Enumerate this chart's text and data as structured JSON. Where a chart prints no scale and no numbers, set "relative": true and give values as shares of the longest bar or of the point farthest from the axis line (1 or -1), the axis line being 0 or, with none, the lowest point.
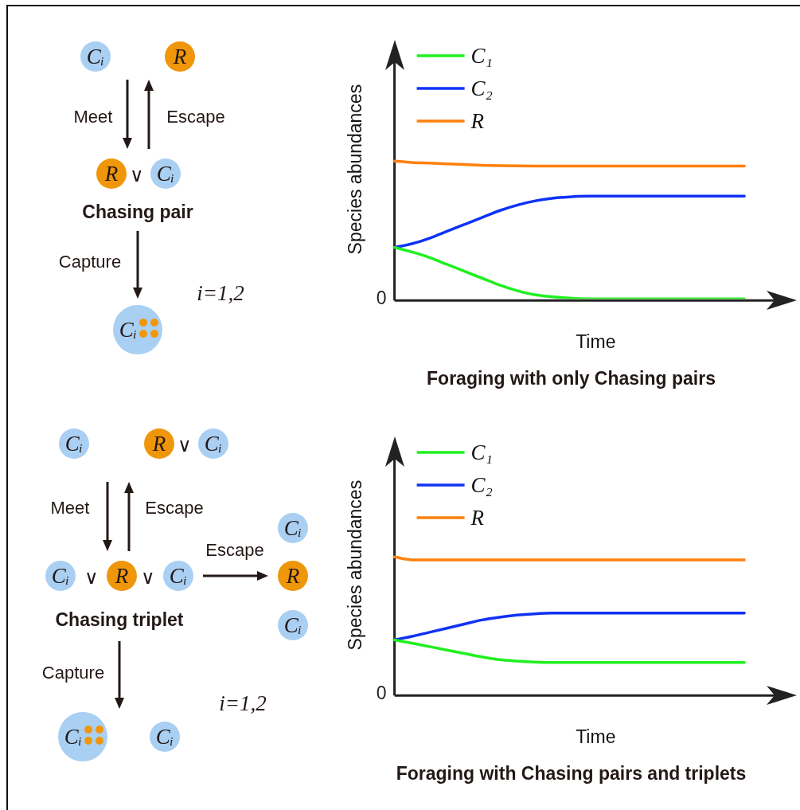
{
  "chart_data": [
    {
      "type": "other",
      "annotations": [
        "Cᵢ",
        "R",
        "Meet",
        "Escape",
        "R",
        "∨",
        "Cᵢ",
        "Chasing pair",
        "Capture",
        "Cᵢ",
        "i=1,2"
      ]
    },
    {
      "type": "line",
      "relative": true,
      "xlabel": "Time",
      "ylabel": "Species abundances",
      "title": "Foraging with only Chasing pairs",
      "legend": "top left",
      "grid": false,
      "marker": "none",
      "line_style": "solid",
      "annotations": [
        "0"
      ],
      "categories": [
        null,
        null,
        null,
        null,
        null,
        null,
        null,
        null,
        null,
        null,
        null,
        null,
        null,
        null,
        null,
        null,
        null,
        null,
        null,
        null,
        null,
        null,
        null,
        null
      ],
      "series": [
        {
          "name": "C₁",
          "color": "#1ff01f",
          "values": [
            0.373,
            0.34,
            0.3,
            0.25,
            0.2,
            0.15,
            0.1,
            0.06,
            0.03,
            0.015,
            0.005,
            0,
            0,
            0,
            0,
            0,
            0,
            0,
            0,
            0,
            0,
            null,
            null,
            null
          ]
        },
        {
          "name": "C₂",
          "color": "#0f32f5",
          "values": [
            0.373,
            0.4,
            0.44,
            0.49,
            0.54,
            0.59,
            0.64,
            0.68,
            0.71,
            0.73,
            0.74,
            0.745,
            0.746,
            0.746,
            0.746,
            0.746,
            0.746,
            0.746,
            0.746,
            0.746,
            0.746,
            null,
            null,
            null
          ]
        },
        {
          "name": "R",
          "color": "#ff800d",
          "values": [
            1,
            0.99,
            0.985,
            0.98,
            0.975,
            0.97,
            0.967,
            0.965,
            0.964,
            0.964,
            0.964,
            0.964,
            0.964,
            0.964,
            0.964,
            0.964,
            0.964,
            0.964,
            0.964,
            0.964,
            0.964,
            null,
            null,
            null
          ]
        }
      ]
    },
    {
      "type": "other",
      "annotations": [
        "Cᵢ",
        "R",
        "∨",
        "Cᵢ",
        "Meet",
        "Escape",
        "Cᵢ",
        "Escape",
        "Cᵢ",
        "∨",
        "R",
        "∨",
        "Cᵢ",
        "R",
        "Chasing triplet",
        "Cᵢ",
        "Capture",
        "i=1,2",
        "Cᵢ",
        "Cᵢ"
      ]
    },
    {
      "type": "line",
      "relative": true,
      "xlabel": "Time",
      "ylabel": "Species abundances",
      "title": "Foraging with Chasing pairs and triplets",
      "legend": "top left",
      "grid": false,
      "marker": "none",
      "line_style": "solid",
      "annotations": [
        "0"
      ],
      "categories": [
        null,
        null,
        null,
        null,
        null,
        null,
        null,
        null,
        null,
        null,
        null,
        null,
        null,
        null,
        null,
        null,
        null,
        null,
        null,
        null,
        null,
        null,
        null,
        null
      ],
      "series": [
        {
          "name": "C₁",
          "color": "#1ff01f",
          "values": [
            0.394,
            0.37,
            0.345,
            0.32,
            0.295,
            0.27,
            0.25,
            0.24,
            0.233,
            0.23,
            0.229,
            0.229,
            0.229,
            0.229,
            0.229,
            0.229,
            0.229,
            0.229,
            0.229,
            0.229,
            0.229,
            null,
            null,
            null
          ]
        },
        {
          "name": "C₂",
          "color": "#0f32f5",
          "values": [
            0.394,
            0.42,
            0.45,
            0.48,
            0.51,
            0.54,
            0.56,
            0.575,
            0.585,
            0.59,
            0.59,
            0.59,
            0.59,
            0.59,
            0.59,
            0.59,
            0.59,
            0.59,
            0.59,
            0.59,
            0.59,
            null,
            null,
            null
          ]
        },
        {
          "name": "R",
          "color": "#ff800d",
          "values": [
            1,
            0.979,
            0.979,
            0.979,
            0.979,
            0.979,
            0.979,
            0.979,
            0.979,
            0.979,
            0.979,
            0.979,
            0.979,
            0.979,
            0.979,
            0.979,
            0.979,
            0.979,
            0.979,
            0.979,
            0.979,
            null,
            null,
            null
          ]
        }
      ]
    }
  ]
}
